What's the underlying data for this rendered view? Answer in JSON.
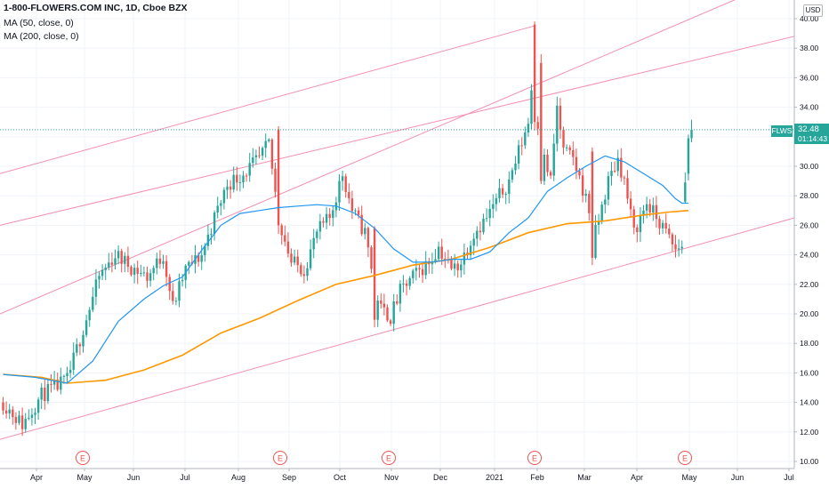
{
  "header": {
    "title": "1-800-FLOWERS.COM INC, 1D, Cboe BZX",
    "ma50_label": "MA (50, close, 0)",
    "ma200_label": "MA (200, close, 0)"
  },
  "currency": "USD",
  "symbol": "FLWS",
  "last_price": "32.48",
  "countdown": "01:14:43",
  "earnings_marker": "E",
  "colors": {
    "up": "#26a69a",
    "down": "#ef5350",
    "ma50": "#2196f3",
    "ma200": "#ff9800",
    "trendline": "#f48fb1",
    "grid": "#f0f3fa",
    "axis_text": "#131722"
  },
  "chart_data": {
    "type": "candlestick",
    "x_ticks": [
      "Apr",
      "May",
      "Jun",
      "Jul",
      "Aug",
      "Sep",
      "Oct",
      "Nov",
      "Dec",
      "2021",
      "Feb",
      "Mar",
      "Apr",
      "May",
      "Jun",
      "Jul"
    ],
    "y_ticks": [
      "10.00",
      "12.00",
      "14.00",
      "16.00",
      "18.00",
      "20.00",
      "22.00",
      "24.00",
      "26.00",
      "28.00",
      "30.00",
      "32.00",
      "34.00",
      "36.00",
      "38.00",
      "40.00"
    ],
    "ylim": [
      9.5,
      41.0
    ],
    "grid": true,
    "price_anchors": [
      [
        0,
        14.0
      ],
      [
        6,
        12.5
      ],
      [
        12,
        14.5
      ],
      [
        20,
        15.5
      ],
      [
        25,
        19.0
      ],
      [
        30,
        22.5
      ],
      [
        35,
        24.0
      ],
      [
        40,
        23.2
      ],
      [
        45,
        22.5
      ],
      [
        50,
        24.0
      ],
      [
        53,
        20.5
      ],
      [
        57,
        23.0
      ],
      [
        62,
        24.0
      ],
      [
        66,
        26.5
      ],
      [
        70,
        28.8
      ],
      [
        75,
        29.5
      ],
      [
        80,
        30.5
      ],
      [
        83,
        31.5
      ],
      [
        86,
        26.5
      ],
      [
        90,
        23.5
      ],
      [
        94,
        23.0
      ],
      [
        98,
        25.5
      ],
      [
        102,
        26.5
      ],
      [
        106,
        29.5
      ],
      [
        109,
        27.0
      ],
      [
        113,
        25.5
      ],
      [
        116,
        22.0
      ],
      [
        118,
        20.3
      ],
      [
        121,
        19.8
      ],
      [
        124,
        21.5
      ],
      [
        128,
        22.5
      ],
      [
        133,
        23.5
      ],
      [
        136,
        24.5
      ],
      [
        140,
        23.0
      ],
      [
        143,
        23.5
      ],
      [
        147,
        25.5
      ],
      [
        151,
        26.5
      ],
      [
        155,
        28.0
      ],
      [
        158,
        29.0
      ],
      [
        161,
        31.0
      ],
      [
        164,
        33.0
      ],
      [
        166,
        37.5
      ],
      [
        167,
        33.0
      ],
      [
        169,
        30.5
      ],
      [
        171,
        29.0
      ],
      [
        173,
        34.0
      ],
      [
        175,
        31.0
      ],
      [
        178,
        30.5
      ],
      [
        181,
        28.5
      ],
      [
        185,
        25.5
      ],
      [
        189,
        29.0
      ],
      [
        192,
        30.5
      ],
      [
        194,
        29.0
      ],
      [
        197,
        25.5
      ],
      [
        201,
        27.5
      ],
      [
        204,
        26.5
      ],
      [
        207,
        25.5
      ],
      [
        210,
        24.3
      ],
      [
        212,
        24.7
      ],
      [
        213,
        28.5
      ],
      [
        215,
        32.48
      ]
    ],
    "ma50_points": [
      [
        0,
        15.9
      ],
      [
        10,
        15.7
      ],
      [
        20,
        15.3
      ],
      [
        28,
        16.8
      ],
      [
        36,
        19.5
      ],
      [
        44,
        21.0
      ],
      [
        50,
        21.9
      ],
      [
        56,
        22.5
      ],
      [
        62,
        24.3
      ],
      [
        68,
        26.0
      ],
      [
        74,
        26.8
      ],
      [
        80,
        27.0
      ],
      [
        86,
        27.2
      ],
      [
        92,
        27.3
      ],
      [
        98,
        27.4
      ],
      [
        104,
        27.3
      ],
      [
        110,
        26.8
      ],
      [
        116,
        25.8
      ],
      [
        122,
        24.4
      ],
      [
        128,
        23.5
      ],
      [
        134,
        23.5
      ],
      [
        140,
        23.7
      ],
      [
        146,
        23.7
      ],
      [
        152,
        24.2
      ],
      [
        158,
        25.5
      ],
      [
        164,
        26.5
      ],
      [
        170,
        28.3
      ],
      [
        176,
        29.2
      ],
      [
        182,
        30.0
      ],
      [
        188,
        30.7
      ],
      [
        194,
        30.3
      ],
      [
        200,
        29.5
      ],
      [
        206,
        28.7
      ],
      [
        210,
        27.8
      ],
      [
        212,
        27.5
      ],
      [
        214,
        27.5
      ]
    ],
    "ma200_points": [
      [
        0,
        15.9
      ],
      [
        12,
        15.7
      ],
      [
        20,
        15.3
      ],
      [
        32,
        15.5
      ],
      [
        44,
        16.2
      ],
      [
        56,
        17.2
      ],
      [
        68,
        18.7
      ],
      [
        80,
        19.7
      ],
      [
        92,
        20.9
      ],
      [
        104,
        22.0
      ],
      [
        116,
        22.6
      ],
      [
        128,
        23.3
      ],
      [
        140,
        23.7
      ],
      [
        152,
        24.5
      ],
      [
        164,
        25.5
      ],
      [
        176,
        26.1
      ],
      [
        188,
        26.3
      ],
      [
        200,
        26.7
      ],
      [
        208,
        26.9
      ],
      [
        214,
        27.0
      ]
    ],
    "earnings_dates_approx": [
      "May 2020",
      "Aug 2020",
      "Oct 2020",
      "Jan 2021",
      "Apr 2021"
    ]
  }
}
